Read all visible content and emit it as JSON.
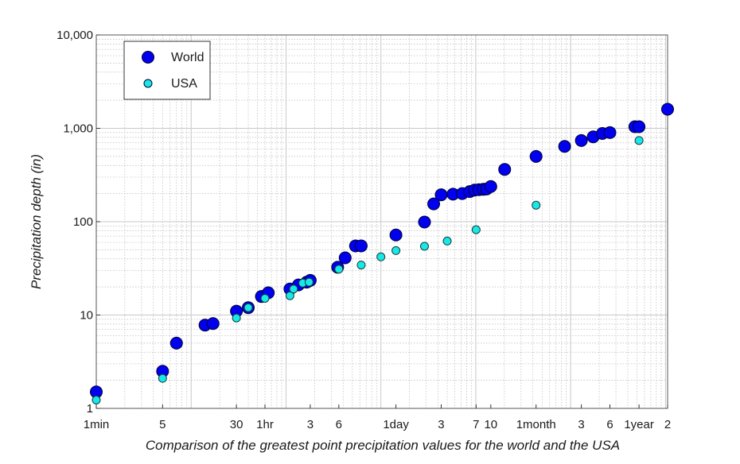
{
  "chart_data": {
    "type": "scatter",
    "title": "",
    "xlabel": "Comparison of the greatest point precipitation values for the world and the USA",
    "ylabel": "Precipitation depth (in)",
    "x_scale": "log",
    "y_scale": "log",
    "x_unit": "minutes",
    "xlim": [
      1,
      1051200
    ],
    "ylim": [
      1,
      10000
    ],
    "grid": true,
    "legend_position": "top-left",
    "x_tick_labels": [
      {
        "value": 1,
        "label": "1min"
      },
      {
        "value": 5,
        "label": "5"
      },
      {
        "value": 30,
        "label": "30"
      },
      {
        "value": 60,
        "label": "1hr"
      },
      {
        "value": 180,
        "label": "3"
      },
      {
        "value": 360,
        "label": "6"
      },
      {
        "value": 1440,
        "label": "1day"
      },
      {
        "value": 4320,
        "label": "3"
      },
      {
        "value": 10080,
        "label": "7"
      },
      {
        "value": 14400,
        "label": "10"
      },
      {
        "value": 43200,
        "label": "1month"
      },
      {
        "value": 129600,
        "label": "3"
      },
      {
        "value": 259200,
        "label": "6"
      },
      {
        "value": 525600,
        "label": "1year"
      },
      {
        "value": 1051200,
        "label": "2"
      }
    ],
    "y_tick_labels": [
      {
        "value": 1,
        "label": "1"
      },
      {
        "value": 10,
        "label": "10"
      },
      {
        "value": 100,
        "label": "100"
      },
      {
        "value": 1000,
        "label": "1,000"
      },
      {
        "value": 10000,
        "label": "10,000"
      }
    ],
    "series": [
      {
        "name": "World",
        "color": "#0000ee",
        "x": [
          1,
          5,
          7,
          14,
          17,
          30,
          40,
          55,
          65,
          110,
          135,
          165,
          180,
          350,
          420,
          540,
          620,
          1440,
          2880,
          3600,
          4320,
          5760,
          7200,
          8640,
          9700,
          10800,
          12000,
          13000,
          14400,
          20160,
          43200,
          86400,
          129600,
          172800,
          216000,
          259200,
          475200,
          525600,
          1051200
        ],
        "y": [
          1.5,
          2.5,
          5,
          7.8,
          8.1,
          11,
          12,
          15.8,
          17.3,
          19,
          21,
          22.5,
          23.5,
          32.5,
          41,
          55,
          55,
          72,
          99,
          155,
          194,
          197,
          200,
          210,
          218,
          220,
          222,
          224,
          238,
          363,
          500,
          640,
          740,
          810,
          880,
          900,
          1040,
          1040,
          1600
        ]
      },
      {
        "name": "USA",
        "color": "#17e8e8",
        "x": [
          1,
          5,
          30,
          40,
          60,
          110,
          120,
          150,
          175,
          360,
          620,
          1000,
          1440,
          2880,
          5000,
          10080,
          43200,
          525600
        ],
        "y": [
          1.23,
          2.1,
          9.3,
          12,
          15.1,
          16.1,
          19,
          22,
          22.5,
          31,
          34.3,
          42,
          49,
          54.5,
          62,
          82,
          150,
          740
        ]
      }
    ]
  }
}
